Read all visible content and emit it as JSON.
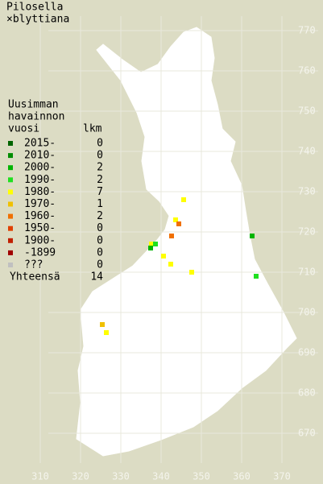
{
  "chart_data": {
    "type": "map",
    "title_lines": [
      "Pilosella",
      "×blyttiana"
    ],
    "legend_header": [
      "Uusimman",
      "havainnon",
      "vuosi"
    ],
    "count_header": "lkm",
    "legend": [
      {
        "label": "2015-",
        "count": 0,
        "color": "#006400"
      },
      {
        "label": "2010-",
        "count": 0,
        "color": "#008c00"
      },
      {
        "label": "2000-",
        "count": 2,
        "color": "#00b400"
      },
      {
        "label": "1990-",
        "count": 2,
        "color": "#20e020"
      },
      {
        "label": "1980-",
        "count": 7,
        "color": "#ffff00"
      },
      {
        "label": "1970-",
        "count": 1,
        "color": "#f0c000"
      },
      {
        "label": "1960-",
        "count": 2,
        "color": "#f07000"
      },
      {
        "label": "1950-",
        "count": 0,
        "color": "#e04000"
      },
      {
        "label": "1900-",
        "count": 0,
        "color": "#c02000"
      },
      {
        "label": "-1899",
        "count": 0,
        "color": "#a00000"
      },
      {
        "label": "???",
        "count": 0,
        "color": "#c0c0c0"
      }
    ],
    "total_label": "Yhteensä",
    "total": 14,
    "xlim": [
      302,
      378
    ],
    "ylim": [
      659,
      780
    ],
    "xticks": [
      310,
      320,
      330,
      340,
      350,
      360,
      370
    ],
    "yticks": [
      670,
      680,
      690,
      700,
      710,
      720,
      730,
      740,
      750,
      760,
      770
    ],
    "points": [
      {
        "x": 345.6,
        "y": 728,
        "color": "#ffff00"
      },
      {
        "x": 343.6,
        "y": 723,
        "color": "#ffff00"
      },
      {
        "x": 340.6,
        "y": 714,
        "color": "#ffff00"
      },
      {
        "x": 342.4,
        "y": 712,
        "color": "#ffff00"
      },
      {
        "x": 347.6,
        "y": 710,
        "color": "#ffff00"
      },
      {
        "x": 337.6,
        "y": 717,
        "color": "#ffff00"
      },
      {
        "x": 326.4,
        "y": 695,
        "color": "#ffff00"
      },
      {
        "x": 325.4,
        "y": 697,
        "color": "#f0c000"
      },
      {
        "x": 344.4,
        "y": 722,
        "color": "#f07000"
      },
      {
        "x": 342.6,
        "y": 719,
        "color": "#f07000"
      },
      {
        "x": 337.4,
        "y": 716,
        "color": "#00b400"
      },
      {
        "x": 362.6,
        "y": 719,
        "color": "#00b400"
      },
      {
        "x": 338.6,
        "y": 717,
        "color": "#20e020"
      },
      {
        "x": 363.6,
        "y": 709,
        "color": "#20e020"
      }
    ]
  }
}
